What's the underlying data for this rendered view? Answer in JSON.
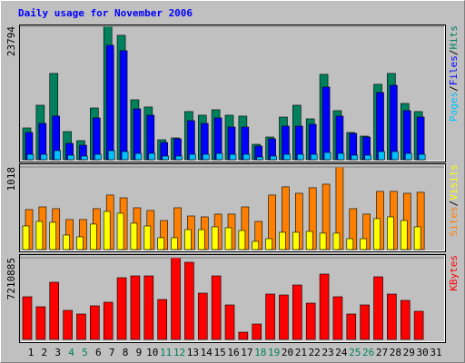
{
  "title": "Daily usage for November 2006",
  "legend_separator": "/",
  "categories": [
    "1",
    "2",
    "3",
    "4",
    "5",
    "6",
    "7",
    "8",
    "9",
    "10",
    "11",
    "12",
    "13",
    "14",
    "15",
    "16",
    "17",
    "18",
    "19",
    "20",
    "21",
    "22",
    "23",
    "24",
    "25",
    "26",
    "27",
    "28",
    "29",
    "30",
    "31"
  ],
  "category_colors": [
    "#000000",
    "#000000",
    "#000000",
    "#00805c",
    "#00805c",
    "#000000",
    "#000000",
    "#000000",
    "#000000",
    "#000000",
    "#00805c",
    "#00805c",
    "#000000",
    "#000000",
    "#000000",
    "#000000",
    "#000000",
    "#00805c",
    "#00805c",
    "#000000",
    "#000000",
    "#000000",
    "#000000",
    "#000000",
    "#00805c",
    "#00805c",
    "#000000",
    "#000000",
    "#000000",
    "#000000",
    "#000000"
  ],
  "chart_data": [
    {
      "type": "bar",
      "ylim": [
        0,
        23794
      ],
      "yticks": [
        23794
      ],
      "series": [
        {
          "name": "Hits",
          "color": "#00805c",
          "values": [
            5670,
            9720,
            15390,
            5020,
            3400,
            9230,
            23794,
            22190,
            10690,
            9400,
            3560,
            3890,
            8590,
            7940,
            8910,
            7940,
            7780,
            2750,
            4050,
            7610,
            9720,
            7290,
            15230,
            8750,
            4860,
            4210,
            13450,
            15390,
            10040,
            8590,
            0
          ]
        },
        {
          "name": "Files",
          "color": "#0000ff",
          "values": [
            4860,
            6480,
            7780,
            2920,
            2590,
            7450,
            20410,
            19440,
            9070,
            7940,
            3080,
            3730,
            6970,
            6480,
            7450,
            5830,
            5830,
            2430,
            3730,
            5990,
            5990,
            6320,
            12960,
            7780,
            4700,
            4050,
            11990,
            13280,
            8750,
            7610,
            0
          ]
        },
        {
          "name": "Pages",
          "color": "#00c0ff",
          "values": [
            970,
            970,
            1620,
            810,
            650,
            970,
            1620,
            1460,
            1130,
            1130,
            650,
            650,
            970,
            970,
            1130,
            970,
            970,
            490,
            650,
            970,
            970,
            970,
            1300,
            1130,
            810,
            810,
            1460,
            1460,
            1130,
            970,
            0
          ]
        }
      ]
    },
    {
      "type": "bar",
      "ylim": [
        0,
        1018
      ],
      "yticks": [
        1018
      ],
      "series": [
        {
          "name": "Visits",
          "color": "#ffff00",
          "values": [
            291,
            347,
            336,
            179,
            157,
            314,
            470,
            448,
            325,
            291,
            146,
            146,
            246,
            246,
            280,
            269,
            235,
            101,
            134,
            213,
            213,
            224,
            202,
            202,
            134,
            134,
            381,
            403,
            358,
            280,
            0
          ]
        },
        {
          "name": "Sites",
          "color": "#ff8000",
          "values": [
            493,
            526,
            504,
            370,
            370,
            504,
            672,
            638,
            515,
            482,
            358,
            515,
            414,
            403,
            437,
            437,
            526,
            347,
            672,
            773,
            694,
            762,
            806,
            1018,
            504,
            437,
            717,
            717,
            694,
            706,
            0
          ]
        }
      ]
    },
    {
      "type": "bar",
      "ylim": [
        0,
        7210885
      ],
      "yticks": [
        7210885
      ],
      "series": [
        {
          "name": "KBytes",
          "color": "#ff0000",
          "values": [
            3765700,
            2884400,
            5047600,
            2563900,
            2243400,
            2964500,
            3285000,
            5448200,
            5608500,
            5608500,
            3525300,
            7210885,
            6810300,
            4086200,
            5608500,
            3044600,
            641000,
            1362100,
            4006100,
            3925900,
            4807300,
            3204800,
            5768700,
            3765700,
            2243400,
            3044600,
            5528400,
            4006100,
            3445200,
            2483800,
            0
          ]
        }
      ]
    }
  ]
}
